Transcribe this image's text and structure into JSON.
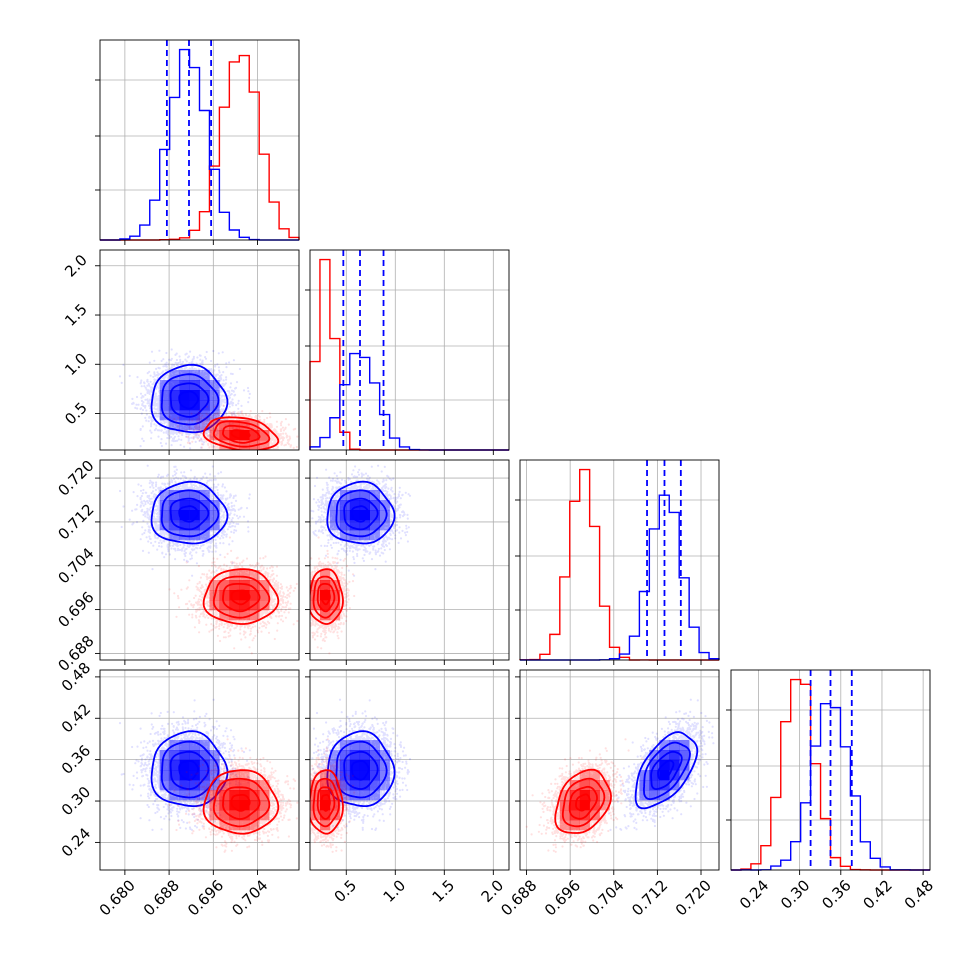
{
  "chart_data": {
    "type": "corner",
    "grid": true,
    "series": [
      {
        "color": "#0000ff",
        "means": [
          0.6915,
          0.64,
          0.7135,
          0.345
        ],
        "sigmas": [
          0.0034,
          0.17,
          0.0028,
          0.027
        ],
        "corr": [
          0.0,
          0.0,
          0.0,
          0.0,
          0.0,
          0.55
        ],
        "quantiles": [
          [
            0.6876,
            0.6916,
            0.6956
          ],
          [
            0.47,
            0.64,
            0.88
          ],
          [
            0.7101,
            0.7133,
            0.7163
          ],
          [
            0.316,
            0.345,
            0.376
          ]
        ]
      },
      {
        "color": "#ff0000",
        "means": [
          0.7009,
          0.29,
          0.6983,
          0.298
        ],
        "sigmas": [
          0.0033,
          0.085,
          0.0025,
          0.023
        ],
        "corr": [
          -0.25,
          0.0,
          0.0,
          0.0,
          0.0,
          0.3
        ]
      }
    ],
    "parameters": [
      {
        "range": [
          0.6755,
          0.7115
        ],
        "ticks": [
          "0.680",
          "0.688",
          "0.696",
          "0.704"
        ],
        "tick_values": [
          0.68,
          0.688,
          0.696,
          0.704
        ]
      },
      {
        "range": [
          0.13,
          2.16
        ],
        "ticks": [
          "0.5",
          "1.0",
          "1.5",
          "2.0"
        ],
        "tick_values": [
          0.5,
          1.0,
          1.5,
          2.0
        ]
      },
      {
        "range": [
          0.6868,
          0.7233
        ],
        "ticks": [
          "0.688",
          "0.696",
          "0.704",
          "0.712",
          "0.720"
        ],
        "tick_values": [
          0.688,
          0.696,
          0.704,
          0.712,
          0.72
        ]
      },
      {
        "range": [
          0.2,
          0.49
        ],
        "ticks": [
          "0.24",
          "0.30",
          "0.36",
          "0.42",
          "0.48"
        ],
        "tick_values": [
          0.24,
          0.3,
          0.36,
          0.42,
          0.48
        ]
      }
    ]
  }
}
